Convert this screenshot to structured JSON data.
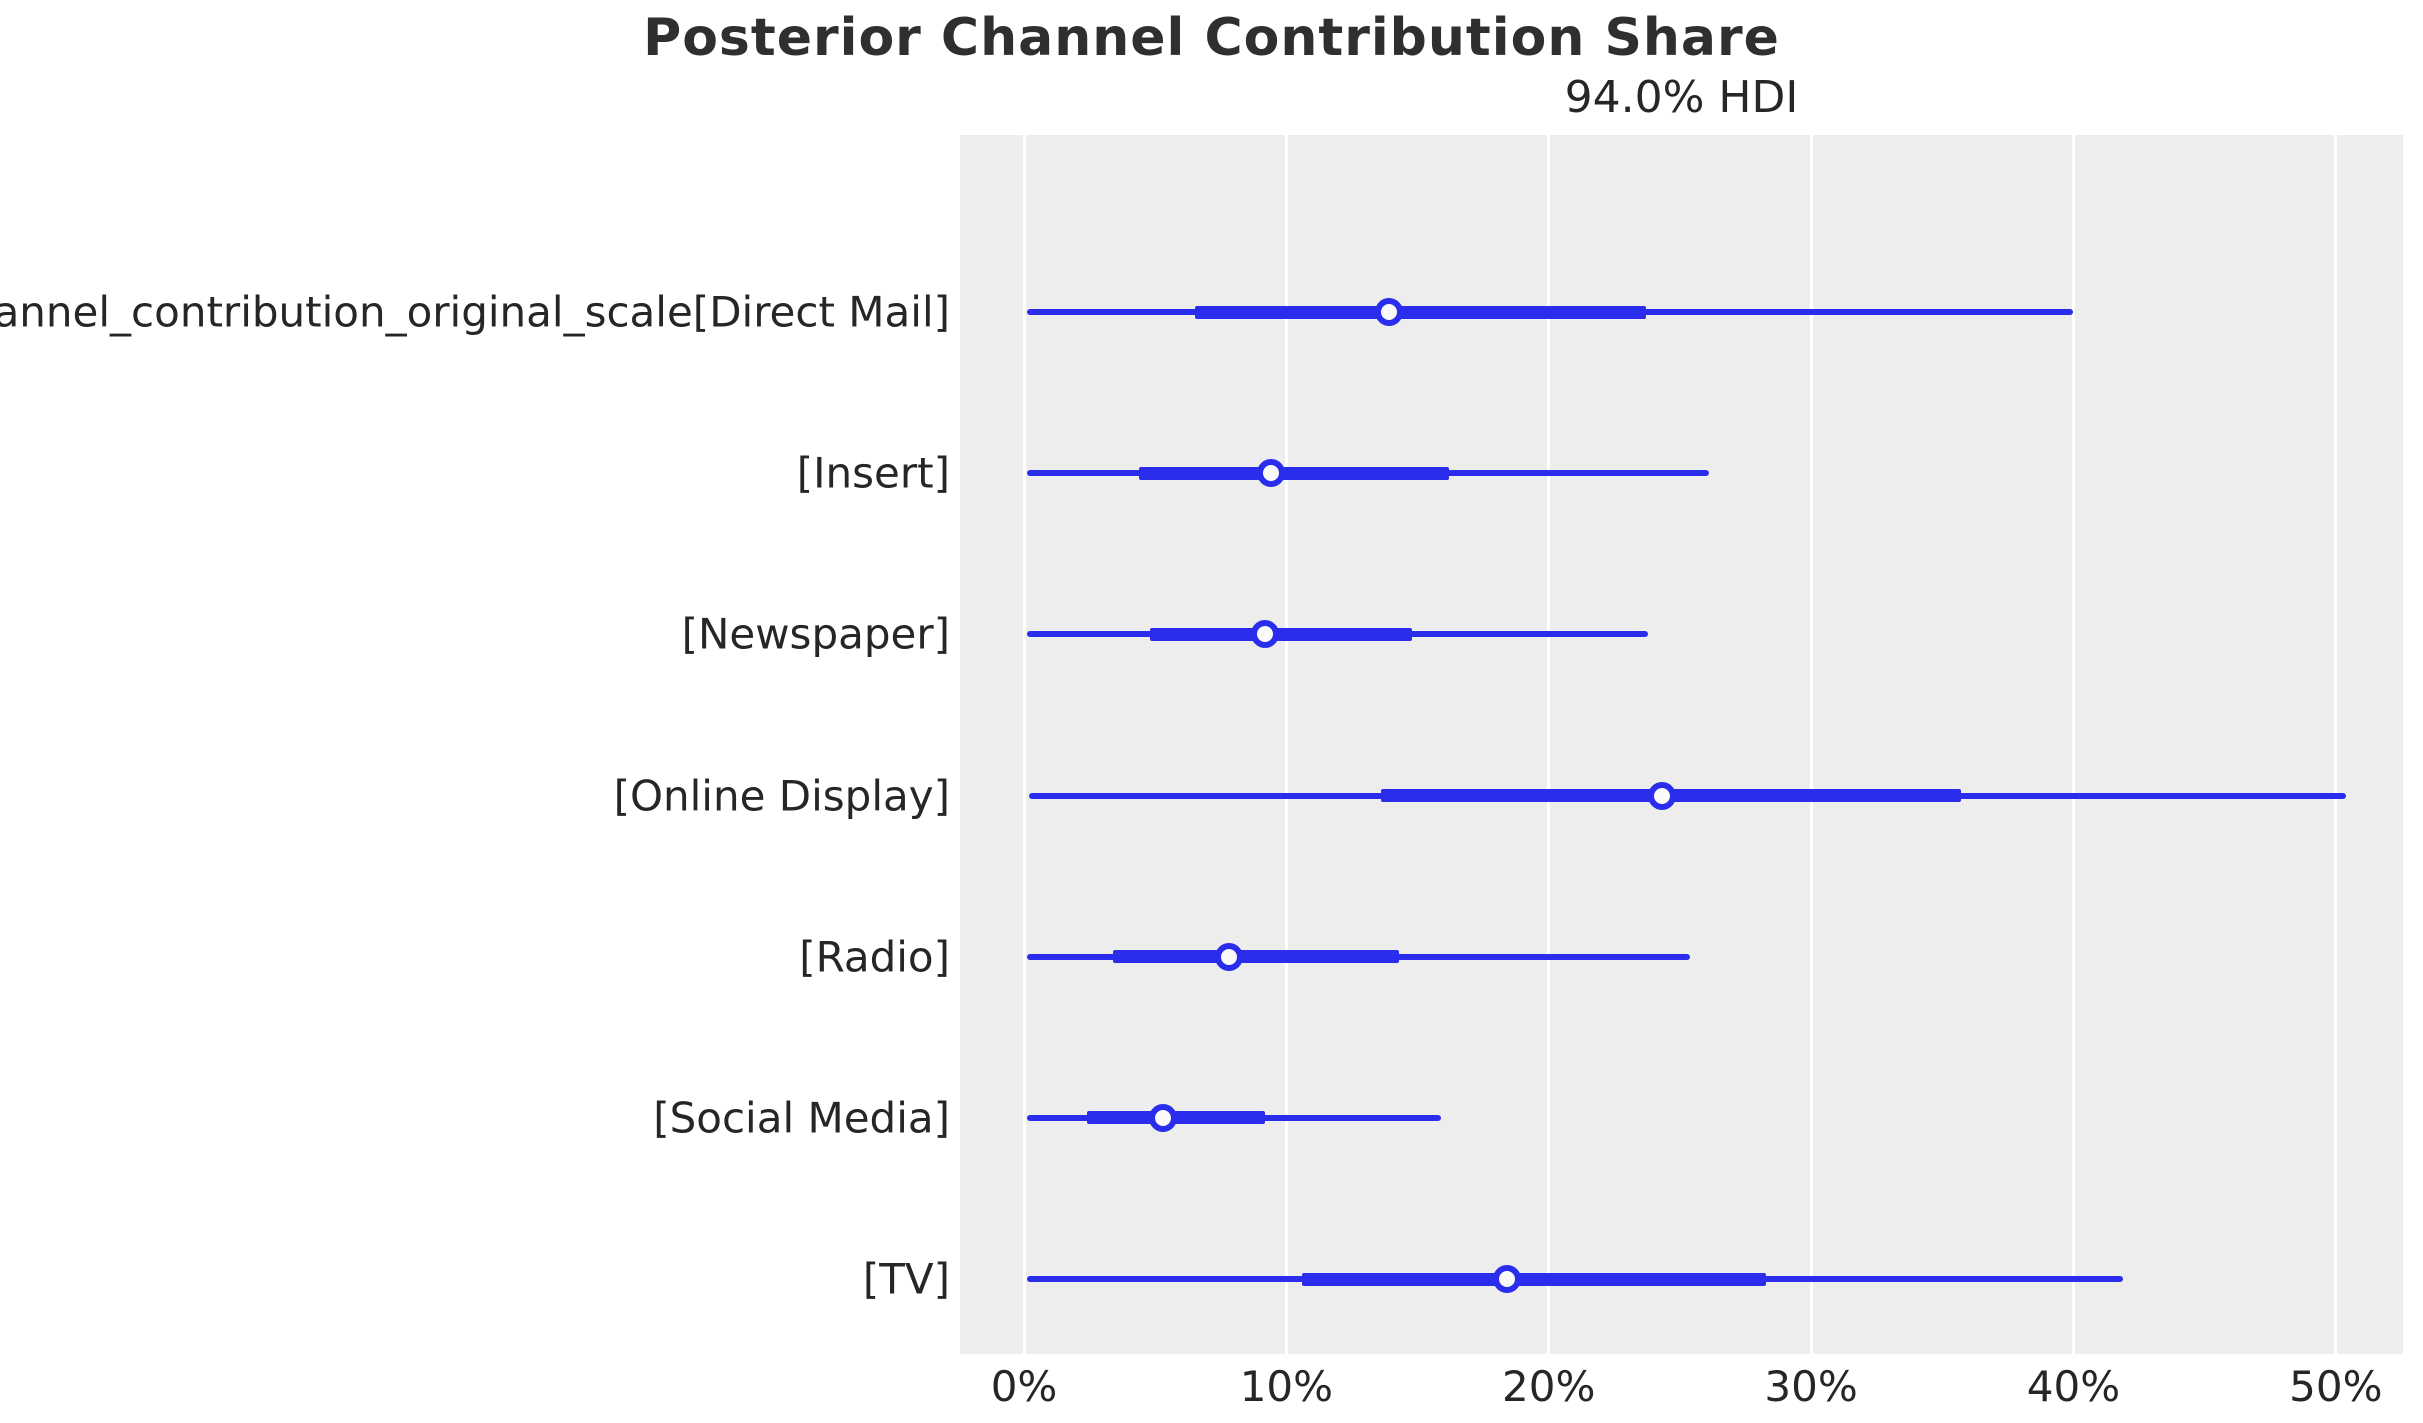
{
  "chart_data": {
    "type": "forest_hdi",
    "title": "Posterior Channel Contribution Share",
    "subtitle": "94.0% HDI",
    "hdi_probability": "94.0%",
    "variable_prefix": "channel_contribution_original_scale",
    "xlabel": "",
    "ylabel": "",
    "xlim": [
      -2.44,
      52.56
    ],
    "grid": "vertical-white-on-gray",
    "x_ticks": [
      {
        "label": "0%",
        "value": 0
      },
      {
        "label": "10%",
        "value": 10
      },
      {
        "label": "20%",
        "value": 20
      },
      {
        "label": "30%",
        "value": 30
      },
      {
        "label": "40%",
        "value": 40
      },
      {
        "label": "50%",
        "value": 50
      }
    ],
    "rows": [
      {
        "label": "channel_contribution_original_scale[Direct Mail]",
        "channel": "Direct Mail",
        "hdi_low": 0.1,
        "hdi_high": 40.0,
        "quartile_low": 6.5,
        "quartile_high": 23.7,
        "point": 13.9
      },
      {
        "label": "[Insert]",
        "channel": "Insert",
        "hdi_low": 0.1,
        "hdi_high": 26.1,
        "quartile_low": 4.4,
        "quartile_high": 16.2,
        "point": 9.4
      },
      {
        "label": "[Newspaper]",
        "channel": "Newspaper",
        "hdi_low": 0.1,
        "hdi_high": 23.8,
        "quartile_low": 4.8,
        "quartile_high": 14.8,
        "point": 9.2
      },
      {
        "label": "[Online Display]",
        "channel": "Online Display",
        "hdi_low": 0.2,
        "hdi_high": 50.4,
        "quartile_low": 13.6,
        "quartile_high": 35.7,
        "point": 24.3
      },
      {
        "label": "[Radio]",
        "channel": "Radio",
        "hdi_low": 0.1,
        "hdi_high": 25.4,
        "quartile_low": 3.4,
        "quartile_high": 14.3,
        "point": 7.8
      },
      {
        "label": "[Social Media]",
        "channel": "Social Media",
        "hdi_low": 0.1,
        "hdi_high": 15.9,
        "quartile_low": 2.4,
        "quartile_high": 9.2,
        "point": 5.3
      },
      {
        "label": "[TV]",
        "channel": "TV",
        "hdi_low": 0.1,
        "hdi_high": 41.9,
        "quartile_low": 10.6,
        "quartile_high": 28.3,
        "point": 18.4
      }
    ],
    "colors": {
      "interval_line": "#2a2eec",
      "marker_fill": "#fafafa",
      "plot_background": "#ededed",
      "gridline": "#ffffff",
      "text": "#262626",
      "title": "#2f2f2f",
      "page_background": "#ffffff"
    }
  }
}
